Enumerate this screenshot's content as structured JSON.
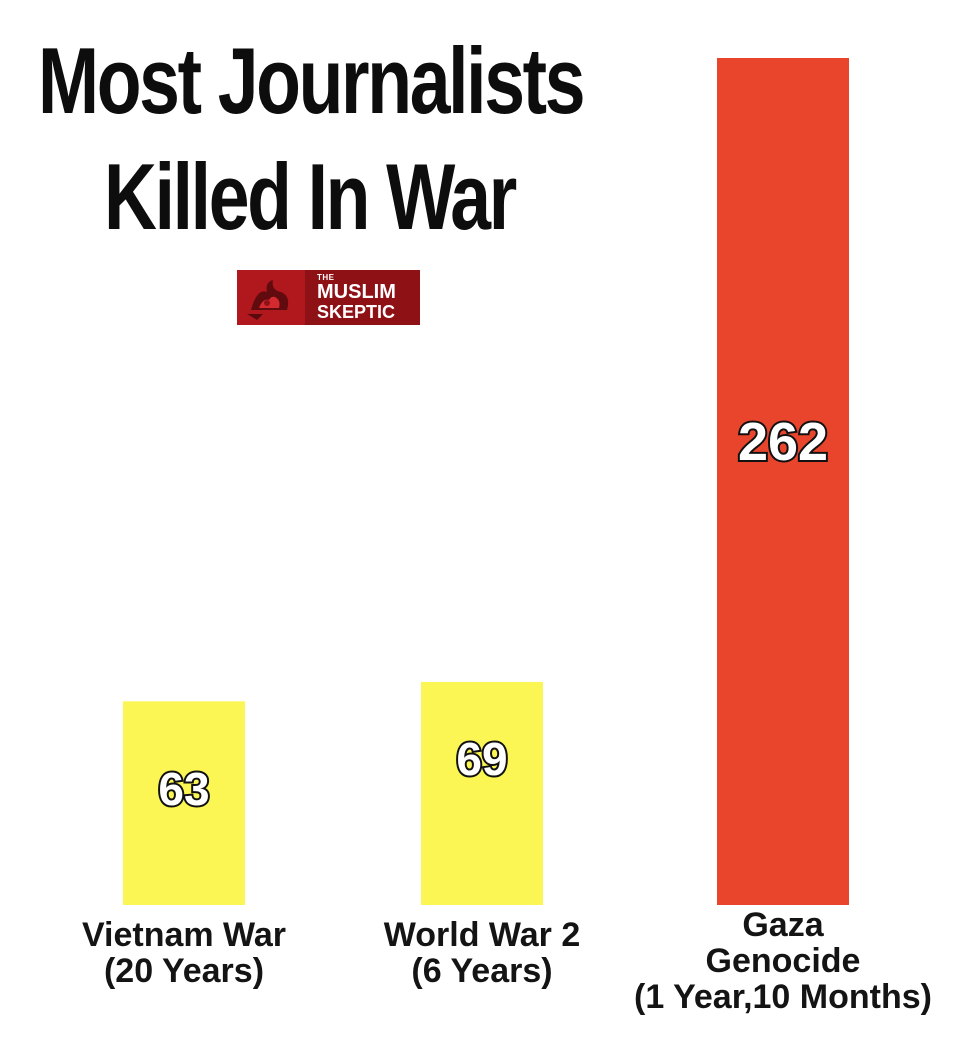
{
  "chart_data": {
    "type": "bar",
    "title_lines": [
      "Most Journalists",
      "Killed In War"
    ],
    "categories": [
      [
        "Vietnam War",
        "(20 Years)"
      ],
      [
        "World War 2",
        "(6 Years)"
      ],
      [
        "Gaza",
        "Genocide",
        "(1 Year,10 Months)"
      ]
    ],
    "values": [
      63,
      69,
      262
    ],
    "value_labels": [
      "63",
      "69",
      "262"
    ],
    "bar_colors": [
      "#fbf653",
      "#fbf653",
      "#e9452c"
    ],
    "xlabel": "",
    "ylabel": "",
    "ylim": [
      0,
      262
    ],
    "grid": false,
    "legend": "none"
  },
  "logo": {
    "line_small": "THE",
    "line1": "MUSLIM",
    "line2": "SKEPTIC",
    "colors": {
      "background": "#8e1116",
      "mark": "#b0181e",
      "text": "#ffffff"
    }
  }
}
